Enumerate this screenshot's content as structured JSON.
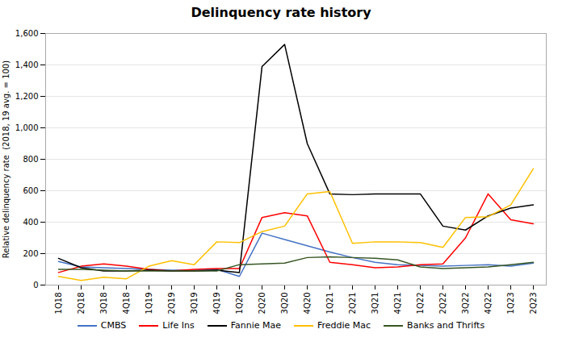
{
  "chart_data": {
    "type": "line",
    "title": "Delinquency rate history",
    "ylabel": "Relative delinquency rate  (2018, 19 avg. = 100)",
    "categories": [
      "1Q18",
      "2Q18",
      "3Q18",
      "4Q18",
      "1Q19",
      "2Q19",
      "3Q19",
      "4Q19",
      "1Q20",
      "2Q20",
      "3Q20",
      "4Q20",
      "1Q21",
      "2Q21",
      "3Q21",
      "4Q21",
      "1Q22",
      "2Q22",
      "3Q22",
      "4Q22",
      "1Q23",
      "2Q23"
    ],
    "series": [
      {
        "name": "CMBS",
        "color": "#4472C4",
        "values": [
          150,
          115,
          110,
          105,
          100,
          95,
          95,
          100,
          55,
          330,
          290,
          250,
          210,
          175,
          145,
          130,
          125,
          120,
          125,
          130,
          120,
          140
        ]
      },
      {
        "name": "Life Ins",
        "color": "#FF0000",
        "values": [
          80,
          120,
          135,
          120,
          100,
          90,
          100,
          105,
          105,
          430,
          460,
          440,
          145,
          130,
          110,
          115,
          130,
          135,
          300,
          580,
          415,
          390
        ]
      },
      {
        "name": "Fannie Mae",
        "color": "#000000",
        "values": [
          170,
          110,
          90,
          90,
          95,
          90,
          90,
          95,
          80,
          1390,
          1530,
          900,
          580,
          575,
          580,
          580,
          580,
          375,
          350,
          440,
          490,
          510
        ]
      },
      {
        "name": "Freddie Mac",
        "color": "#FFC000",
        "values": [
          55,
          30,
          50,
          40,
          120,
          155,
          130,
          275,
          270,
          340,
          375,
          580,
          595,
          265,
          275,
          275,
          270,
          240,
          430,
          435,
          510,
          740
        ]
      },
      {
        "name": "Banks and Thrifts",
        "color": "#375623",
        "values": [
          100,
          100,
          95,
          90,
          90,
          90,
          90,
          90,
          130,
          135,
          140,
          175,
          180,
          175,
          170,
          160,
          115,
          105,
          110,
          115,
          130,
          145
        ]
      }
    ],
    "ylim": [
      0,
      1600
    ],
    "yticks": [
      0,
      200,
      400,
      600,
      800,
      1000,
      1200,
      1400,
      1600
    ],
    "grid": true,
    "legend": "bottom"
  }
}
